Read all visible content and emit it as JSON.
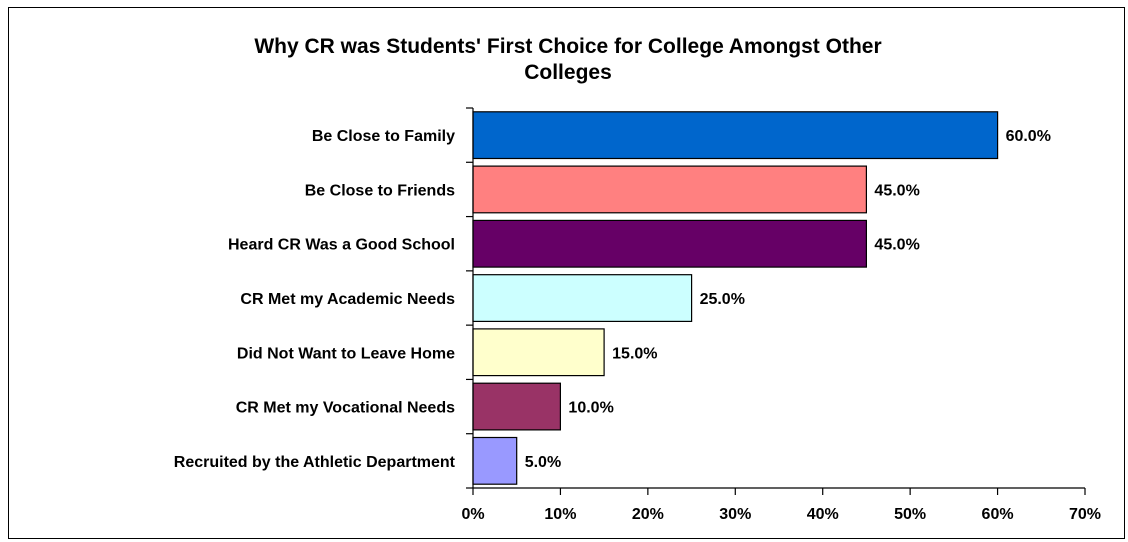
{
  "chart_data": {
    "type": "bar",
    "orientation": "horizontal",
    "title_lines": [
      "Why CR was Students' First Choice for College Amongst Other",
      "Colleges"
    ],
    "categories": [
      "Be Close to Family",
      "Be Close to Friends",
      "Heard CR Was a Good School",
      "CR Met my Academic Needs",
      "Did Not Want to Leave Home",
      "CR Met my Vocational Needs",
      "Recruited by the Athletic Department"
    ],
    "values": [
      60.0,
      45.0,
      45.0,
      25.0,
      15.0,
      10.0,
      5.0
    ],
    "data_labels": [
      "60.0%",
      "45.0%",
      "45.0%",
      "25.0%",
      "15.0%",
      "10.0%",
      "5.0%"
    ],
    "bar_colors": [
      "#0066CC",
      "#FF8080",
      "#660066",
      "#CCFFFF",
      "#FFFFCC",
      "#993366",
      "#9999FF"
    ],
    "xlim": [
      0,
      70
    ],
    "x_ticks": [
      0,
      10,
      20,
      30,
      40,
      50,
      60,
      70
    ],
    "x_tick_labels": [
      "0%",
      "10%",
      "20%",
      "30%",
      "40%",
      "50%",
      "60%",
      "70%"
    ],
    "grid": false,
    "legend": "none"
  }
}
